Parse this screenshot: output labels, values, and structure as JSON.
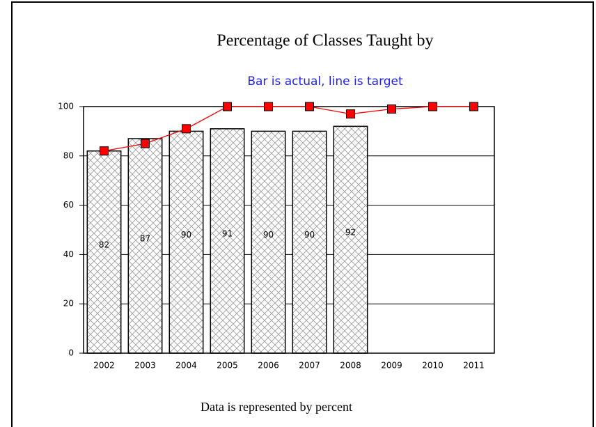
{
  "chart_data": {
    "type": "bar",
    "title": "Percentage of Classes Taught by",
    "subtitle": "Bar is actual, line is target",
    "footer": "Data is represented by percent",
    "categories": [
      "2002",
      "2003",
      "2004",
      "2005",
      "2006",
      "2007",
      "2008",
      "2009",
      "2010",
      "2011"
    ],
    "series": [
      {
        "type": "bar",
        "color": "#000000",
        "values": [
          82,
          87,
          90,
          91,
          90,
          90,
          92,
          null,
          null,
          null
        ]
      },
      {
        "type": "line",
        "color": "#ff0000",
        "values": [
          82,
          85,
          91,
          100,
          100,
          100,
          97,
          99,
          100,
          100
        ]
      }
    ],
    "ylim": [
      0,
      100
    ],
    "yticks": [
      0,
      20,
      40,
      60,
      80,
      100
    ],
    "grid": true
  }
}
